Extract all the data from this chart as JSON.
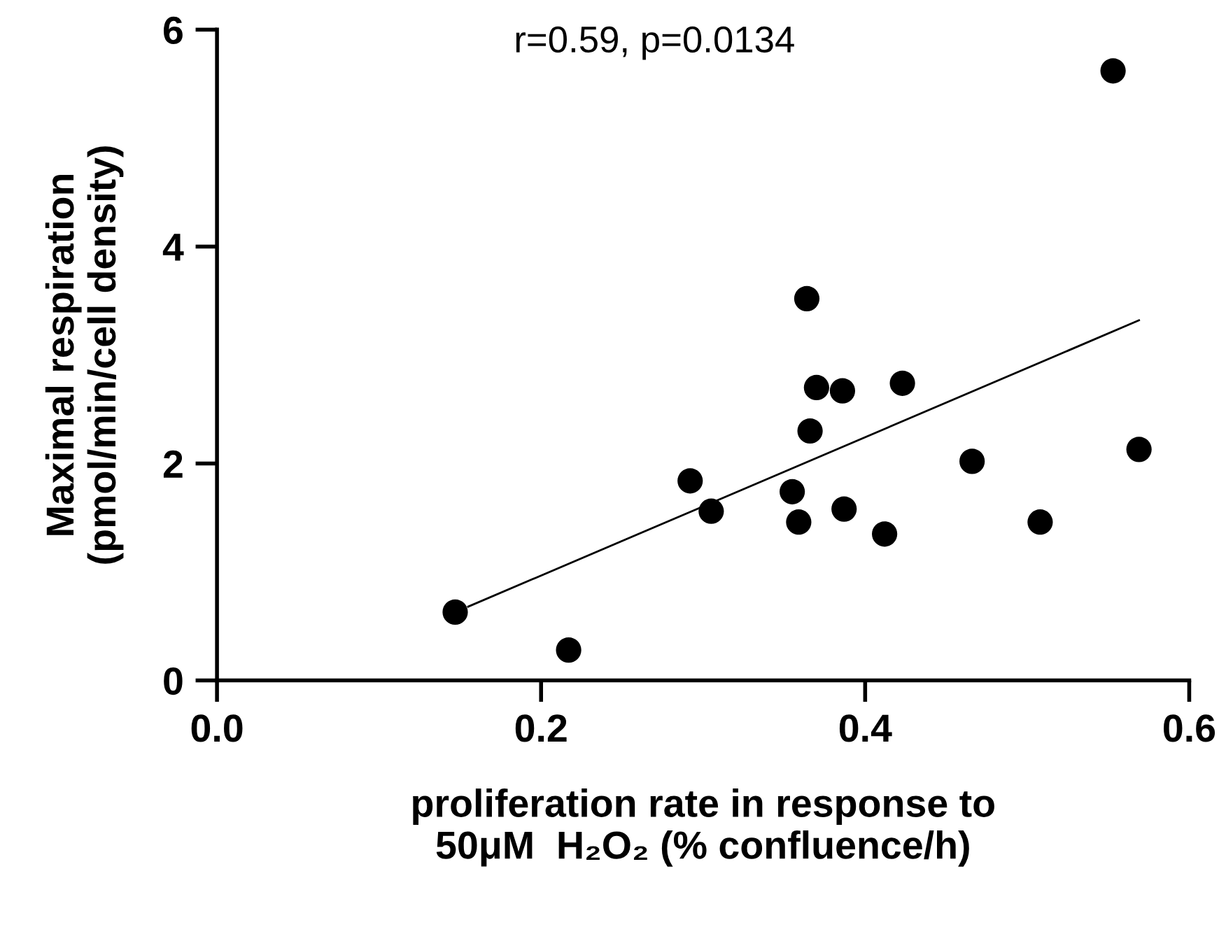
{
  "chart_data": {
    "type": "scatter",
    "xlabel": "proliferation rate in response to\n50μM  H₂O₂ (% confluence/h)",
    "ylabel": "Maximal respiration\n(pmol/min/cell density)",
    "annotations": [
      "r=0.59, p=0.0134"
    ],
    "xlim": [
      0,
      0.6
    ],
    "ylim": [
      0,
      6
    ],
    "xticks": [
      {
        "value": 0,
        "label": "0.0"
      },
      {
        "value": 0.2,
        "label": "0.2"
      },
      {
        "value": 0.4,
        "label": "0.4"
      },
      {
        "value": 0.6,
        "label": "0.6"
      }
    ],
    "yticks": [
      0,
      2,
      4,
      6
    ],
    "grid": false,
    "legend": false,
    "marker": "circle",
    "series": [
      {
        "color": "#000000",
        "x": [
          0.147,
          0.217,
          0.292,
          0.305,
          0.355,
          0.359,
          0.364,
          0.366,
          0.37,
          0.386,
          0.387,
          0.412,
          0.423,
          0.466,
          0.508,
          0.553,
          0.569
        ],
        "values": [
          0.63,
          0.28,
          1.84,
          1.56,
          1.74,
          1.46,
          3.52,
          2.3,
          2.7,
          2.67,
          1.58,
          1.35,
          2.74,
          2.02,
          1.46,
          5.62,
          2.13
        ]
      },
      {
        "type": "line",
        "color": "#000000",
        "line_style": "solid",
        "marker": "none",
        "x": [
          0.155,
          0.569
        ],
        "values": [
          0.68,
          3.32
        ]
      }
    ]
  }
}
